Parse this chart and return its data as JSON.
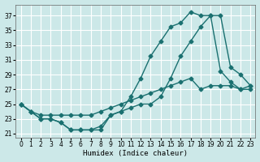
{
  "xlabel": "Humidex (Indice chaleur)",
  "bg_color": "#cce8e8",
  "grid_color": "#ffffff",
  "line_color": "#1a7070",
  "xlim": [
    -0.5,
    23.5
  ],
  "ylim": [
    20.5,
    38.5
  ],
  "xticks": [
    0,
    1,
    2,
    3,
    4,
    5,
    6,
    7,
    8,
    9,
    10,
    11,
    12,
    13,
    14,
    15,
    16,
    17,
    18,
    19,
    20,
    21,
    22,
    23
  ],
  "yticks": [
    21,
    23,
    25,
    27,
    29,
    31,
    33,
    35,
    37
  ],
  "curve1_x": [
    0,
    1,
    2,
    3,
    4,
    5,
    6,
    7,
    8,
    9,
    10,
    11,
    12,
    13,
    14,
    15,
    16,
    17,
    18,
    19,
    20,
    21,
    22,
    23
  ],
  "curve1_y": [
    25,
    24,
    23,
    23,
    22.5,
    21.5,
    21.5,
    21.5,
    21.5,
    23.5,
    24,
    24.5,
    25,
    25,
    26,
    28.5,
    31.5,
    33.5,
    35.5,
    37,
    37,
    30,
    29,
    27.5
  ],
  "curve2_x": [
    0,
    1,
    2,
    3,
    4,
    5,
    6,
    7,
    8,
    9,
    10,
    11,
    12,
    13,
    14,
    15,
    16,
    17,
    18,
    19,
    20,
    21,
    22,
    23
  ],
  "curve2_y": [
    25,
    24,
    23,
    23,
    22.5,
    21.5,
    21.5,
    21.5,
    22,
    23.5,
    24,
    26,
    28.5,
    31.5,
    33.5,
    35.5,
    36,
    37.5,
    37,
    37,
    29.5,
    28,
    27,
    27
  ],
  "curve3_x": [
    0,
    1,
    2,
    3,
    4,
    5,
    6,
    7,
    8,
    9,
    10,
    11,
    12,
    13,
    14,
    15,
    16,
    17,
    18,
    19,
    20,
    21,
    22,
    23
  ],
  "curve3_y": [
    25,
    24,
    23.5,
    23.5,
    23.5,
    23.5,
    23.5,
    23.5,
    24,
    24.5,
    25,
    25.5,
    26,
    26.5,
    27,
    27.5,
    28,
    28.5,
    27,
    27.5,
    27.5,
    27.5,
    27,
    27.5
  ]
}
